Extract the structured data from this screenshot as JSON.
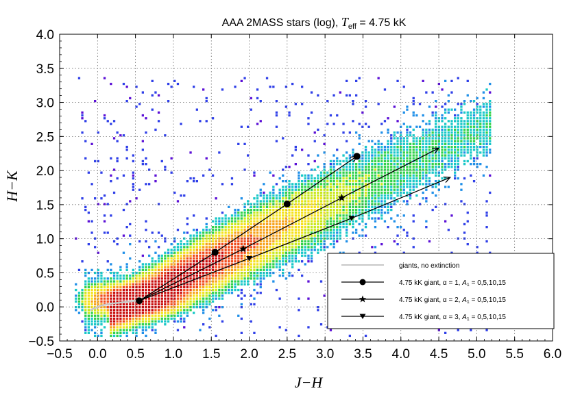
{
  "chart_data": {
    "type": "heatmap",
    "title_prefix": "AAA 2MASS stars (log), ",
    "title_var": "T",
    "title_sub": "eff",
    "title_suffix": " = 4.75 kK",
    "xlabel": "J−H",
    "ylabel": "H−K",
    "xlim": [
      -0.5,
      6.0
    ],
    "ylim": [
      -0.5,
      4.0
    ],
    "xticks": [
      "−0.5",
      "0.0",
      "0.5",
      "1.0",
      "1.5",
      "2.0",
      "2.5",
      "3.0",
      "3.5",
      "4.0",
      "4.5",
      "5.0",
      "5.5",
      "6.0"
    ],
    "xtick_values": [
      -0.5,
      0.0,
      0.5,
      1.0,
      1.5,
      2.0,
      2.5,
      3.0,
      3.5,
      4.0,
      4.5,
      5.0,
      5.5,
      6.0
    ],
    "yticks": [
      "−0.5",
      "0.0",
      "0.5",
      "1.0",
      "1.5",
      "2.0",
      "2.5",
      "3.0",
      "3.5",
      "4.0"
    ],
    "ytick_values": [
      -0.5,
      0.0,
      0.5,
      1.0,
      1.5,
      2.0,
      2.5,
      3.0,
      3.5,
      4.0
    ],
    "grid": true,
    "legend_position": "bottom-right",
    "density_colormap": [
      "#5b0fd6",
      "#2f3fe8",
      "#1f8fe8",
      "#19c8c8",
      "#2fd24a",
      "#c9e81a",
      "#f5e21a",
      "#f7a21a",
      "#f04a1a",
      "#c80a0a"
    ],
    "series": [
      {
        "name": "giants, no extinction",
        "color": "#c8c8c8",
        "marker": "none",
        "x": [
          -0.1,
          0.05,
          0.2,
          0.35,
          0.5,
          0.6,
          0.7
        ],
        "y": [
          -0.05,
          0.02,
          0.05,
          0.07,
          0.09,
          0.12,
          0.16
        ]
      },
      {
        "name": "4.75 kK giant, α = 1, A1 = 0,5,10,15",
        "legend_alpha": "1",
        "color": "#000000",
        "marker": "circle",
        "x": [
          0.55,
          1.55,
          2.5,
          3.42
        ],
        "y": [
          0.09,
          0.8,
          1.51,
          2.21
        ]
      },
      {
        "name": "4.75 kK giant, α = 2, A1 = 0,5,10,15",
        "legend_alpha": "2",
        "color": "#000000",
        "marker": "star",
        "x": [
          0.55,
          1.92,
          3.22,
          4.5
        ],
        "y": [
          0.09,
          0.85,
          1.6,
          2.33
        ]
      },
      {
        "name": "4.75 kK giant, α = 3, A1 = 0,5,10,15",
        "legend_alpha": "3",
        "color": "#000000",
        "marker": "triangle-down",
        "x": [
          0.55,
          2.0,
          3.35,
          4.65
        ],
        "y": [
          0.09,
          0.71,
          1.3,
          1.9
        ]
      }
    ],
    "legend": {
      "row0": "giants, no extinction",
      "giant_prefix": "4.75 kK giant, α = ",
      "a_var": "A",
      "a_sub": "1",
      "a_values": " = 0,5,10,15"
    }
  }
}
